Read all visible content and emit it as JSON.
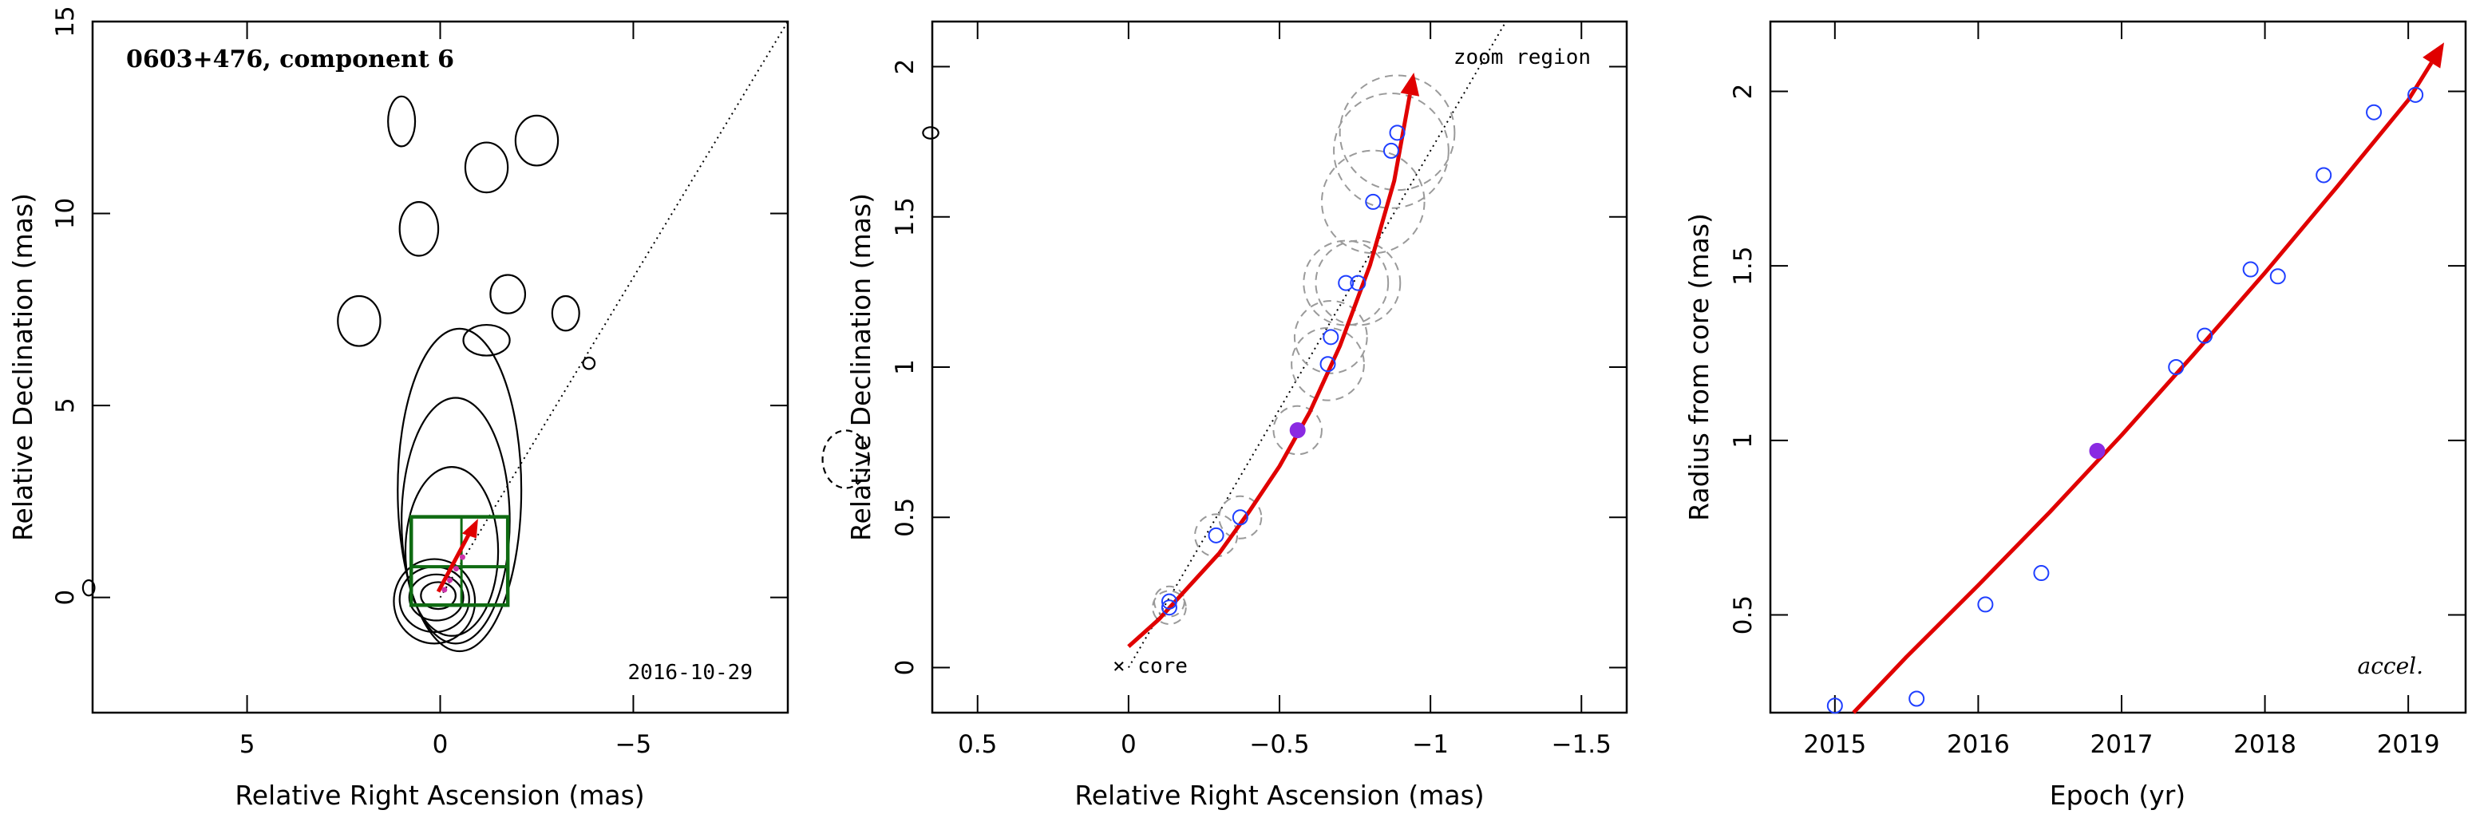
{
  "chart_data": [
    {
      "type": "contour",
      "title": "0603+476, component 6",
      "date_label": "2016-10-29",
      "xlabel": "Relative Right Ascension (mas)",
      "ylabel": "Relative Declination (mas)",
      "xlim": [
        9,
        -9
      ],
      "ylim": [
        -3,
        15
      ],
      "x_ticks": [
        {
          "v": 5,
          "label": "5"
        },
        {
          "v": 0,
          "label": "0"
        },
        {
          "v": -5,
          "label": "−5"
        }
      ],
      "y_ticks": [
        {
          "v": 0,
          "label": "0"
        },
        {
          "v": 5,
          "label": "5"
        },
        {
          "v": 10,
          "label": "10"
        },
        {
          "v": 15,
          "label": "15"
        }
      ],
      "zoom_box": {
        "x0": 0.75,
        "x1": -1.75,
        "y0": -0.2,
        "y1": 2.1
      },
      "core_contours": [
        {
          "cx": 0.05,
          "cy": 0.05,
          "rx": 0.45,
          "ry": 0.35
        },
        {
          "cx": 0.1,
          "cy": 0.0,
          "rx": 0.7,
          "ry": 0.6
        },
        {
          "cx": 0.15,
          "cy": -0.05,
          "rx": 0.9,
          "ry": 0.85
        },
        {
          "cx": 0.15,
          "cy": -0.1,
          "rx": 1.05,
          "ry": 1.1
        }
      ],
      "jet_contours": [
        {
          "cx": -0.3,
          "cy": 1.2,
          "rx": 1.2,
          "ry": 2.2
        },
        {
          "cx": -0.4,
          "cy": 2.0,
          "rx": 1.4,
          "ry": 3.2
        },
        {
          "cx": -0.5,
          "cy": 2.8,
          "rx": 1.6,
          "ry": 4.2
        }
      ],
      "blobs": [
        {
          "cx": 1.0,
          "cy": 12.4,
          "rx": 0.35,
          "ry": 0.65
        },
        {
          "cx": -1.2,
          "cy": 11.2,
          "rx": 0.55,
          "ry": 0.65
        },
        {
          "cx": -2.5,
          "cy": 11.9,
          "rx": 0.55,
          "ry": 0.65
        },
        {
          "cx": 0.55,
          "cy": 9.6,
          "rx": 0.5,
          "ry": 0.7
        },
        {
          "cx": -1.75,
          "cy": 7.9,
          "rx": 0.45,
          "ry": 0.5
        },
        {
          "cx": 2.1,
          "cy": 7.2,
          "rx": 0.55,
          "ry": 0.65
        },
        {
          "cx": -1.2,
          "cy": 6.7,
          "rx": 0.6,
          "ry": 0.4
        },
        {
          "cx": -3.25,
          "cy": 7.4,
          "rx": 0.35,
          "ry": 0.45
        },
        {
          "cx": -3.85,
          "cy": 6.1,
          "rx": 0.15,
          "ry": 0.15
        },
        {
          "cx": 9.1,
          "cy": 0.25,
          "rx": 0.15,
          "ry": 0.2
        },
        {
          "cx": -12.7,
          "cy": 12.1,
          "rx": 0.2,
          "ry": 0.15
        }
      ],
      "negative_contours": [
        {
          "cx": -10.5,
          "cy": 3.6,
          "rx": 0.6,
          "ry": 0.75
        }
      ],
      "direction_line": [
        {
          "x": 0,
          "y": 0
        },
        {
          "x": -9,
          "y": 15
        }
      ]
    },
    {
      "type": "scatter",
      "xlabel": "Relative Right Ascension (mas)",
      "ylabel": "Relative Declination (mas)",
      "xlim": [
        0.65,
        -1.65
      ],
      "ylim": [
        -0.15,
        2.15
      ],
      "x_ticks": [
        {
          "v": 0.5,
          "label": "0.5"
        },
        {
          "v": 0,
          "label": "0"
        },
        {
          "v": -0.5,
          "label": "−0.5"
        },
        {
          "v": -1,
          "label": "−1"
        },
        {
          "v": -1.5,
          "label": "−1.5"
        }
      ],
      "y_ticks": [
        {
          "v": 0,
          "label": "0"
        },
        {
          "v": 0.5,
          "label": "0.5"
        },
        {
          "v": 1,
          "label": "1"
        },
        {
          "v": 1.5,
          "label": "1.5"
        },
        {
          "v": 2,
          "label": "2"
        }
      ],
      "core_label": "× core",
      "zoom_label": "zoom region",
      "points": [
        {
          "x": -0.135,
          "y": 0.2,
          "r": 0.055,
          "filled": false
        },
        {
          "x": -0.135,
          "y": 0.22,
          "r": 0.05,
          "filled": false
        },
        {
          "x": -0.29,
          "y": 0.44,
          "r": 0.07,
          "filled": false
        },
        {
          "x": -0.37,
          "y": 0.5,
          "r": 0.07,
          "filled": false
        },
        {
          "x": -0.56,
          "y": 0.79,
          "r": 0.08,
          "filled": true
        },
        {
          "x": -0.66,
          "y": 1.01,
          "r": 0.12,
          "filled": false
        },
        {
          "x": -0.67,
          "y": 1.1,
          "r": 0.12,
          "filled": false
        },
        {
          "x": -0.72,
          "y": 1.28,
          "r": 0.14,
          "filled": false
        },
        {
          "x": -0.76,
          "y": 1.28,
          "r": 0.14,
          "filled": false
        },
        {
          "x": -0.81,
          "y": 1.55,
          "r": 0.17,
          "filled": false
        },
        {
          "x": -0.87,
          "y": 1.72,
          "r": 0.19,
          "filled": false
        },
        {
          "x": -0.89,
          "y": 1.78,
          "r": 0.19,
          "filled": false
        }
      ],
      "fit_curve": [
        {
          "x": 0.0,
          "y": 0.07
        },
        {
          "x": -0.1,
          "y": 0.16
        },
        {
          "x": -0.2,
          "y": 0.27
        },
        {
          "x": -0.3,
          "y": 0.38
        },
        {
          "x": -0.4,
          "y": 0.52
        },
        {
          "x": -0.5,
          "y": 0.67
        },
        {
          "x": -0.6,
          "y": 0.85
        },
        {
          "x": -0.7,
          "y": 1.07
        },
        {
          "x": -0.8,
          "y": 1.34
        },
        {
          "x": -0.88,
          "y": 1.62
        },
        {
          "x": -0.945,
          "y": 1.98
        }
      ],
      "direction_line": [
        {
          "x": 0.0,
          "y": 0.0
        },
        {
          "x": -1.25,
          "y": 2.15
        }
      ]
    },
    {
      "type": "scatter",
      "xlabel": "Epoch (yr)",
      "ylabel": "Radius from core (mas)",
      "annotation": "accel.",
      "xlim": [
        2014.55,
        2019.4
      ],
      "ylim": [
        0.22,
        2.2
      ],
      "x_ticks": [
        {
          "v": 2015,
          "label": "2015"
        },
        {
          "v": 2016,
          "label": "2016"
        },
        {
          "v": 2017,
          "label": "2017"
        },
        {
          "v": 2018,
          "label": "2018"
        },
        {
          "v": 2019,
          "label": "2019"
        }
      ],
      "y_ticks": [
        {
          "v": 0.5,
          "label": "0.5"
        },
        {
          "v": 1,
          "label": "1"
        },
        {
          "v": 1.5,
          "label": "1.5"
        },
        {
          "v": 2,
          "label": "2"
        }
      ],
      "points": [
        {
          "x": 2015.0,
          "y": 0.24,
          "filled": false
        },
        {
          "x": 2015.57,
          "y": 0.26,
          "filled": false
        },
        {
          "x": 2016.05,
          "y": 0.53,
          "filled": false
        },
        {
          "x": 2016.44,
          "y": 0.62,
          "filled": false
        },
        {
          "x": 2016.83,
          "y": 0.97,
          "filled": true
        },
        {
          "x": 2017.38,
          "y": 1.21,
          "filled": false
        },
        {
          "x": 2017.58,
          "y": 1.3,
          "filled": false
        },
        {
          "x": 2017.9,
          "y": 1.49,
          "filled": false
        },
        {
          "x": 2018.09,
          "y": 1.47,
          "filled": false
        },
        {
          "x": 2018.41,
          "y": 1.76,
          "filled": false
        },
        {
          "x": 2018.76,
          "y": 1.94,
          "filled": false
        },
        {
          "x": 2019.05,
          "y": 1.99,
          "filled": false
        }
      ],
      "fit_curve": [
        {
          "x": 2015.13,
          "y": 0.22
        },
        {
          "x": 2015.5,
          "y": 0.38
        },
        {
          "x": 2016.0,
          "y": 0.585
        },
        {
          "x": 2016.5,
          "y": 0.795
        },
        {
          "x": 2017.0,
          "y": 1.015
        },
        {
          "x": 2017.5,
          "y": 1.245
        },
        {
          "x": 2018.0,
          "y": 1.48
        },
        {
          "x": 2018.5,
          "y": 1.725
        },
        {
          "x": 2019.0,
          "y": 1.975
        },
        {
          "x": 2019.25,
          "y": 2.14
        }
      ]
    }
  ]
}
